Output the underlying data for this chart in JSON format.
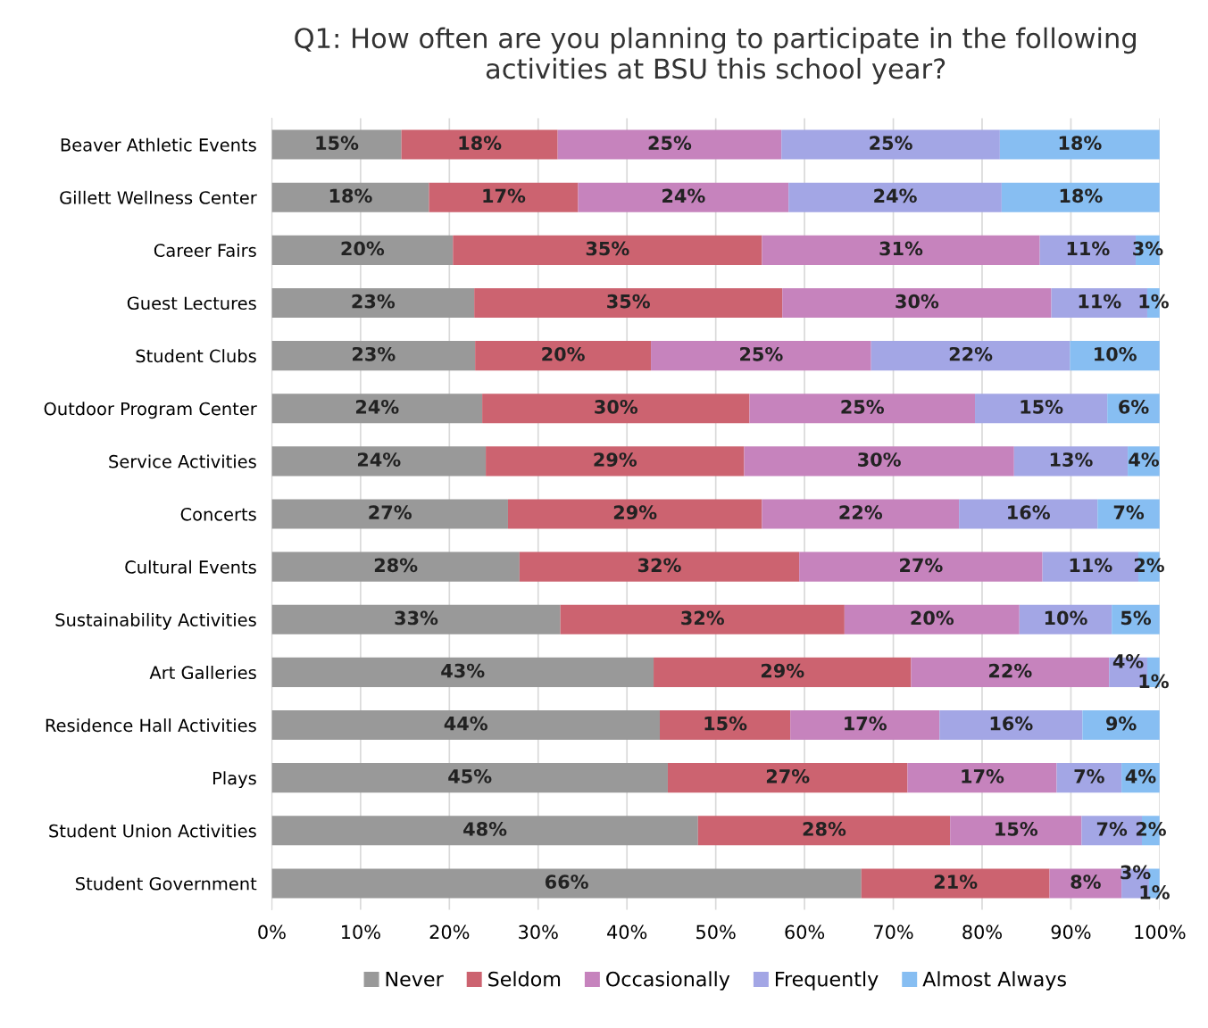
{
  "chart_data": {
    "type": "bar",
    "orientation": "horizontal",
    "stacked": true,
    "title": "Q1: How often are you planning to participate in the following\nactivities at BSU this school year?",
    "categories": [
      "Beaver Athletic Events",
      "Gillett Wellness Center",
      "Career Fairs",
      "Guest Lectures",
      "Student Clubs",
      "Outdoor Program Center",
      "Service Activities",
      "Concerts",
      "Cultural Events",
      "Sustainability Activities",
      "Art Galleries",
      "Residence Hall Activities",
      "Plays",
      "Student Union Activities",
      "Student Government"
    ],
    "series": [
      {
        "name": "Never",
        "color": "#999999",
        "values": [
          14.6,
          17.7,
          20.4,
          22.8,
          22.9,
          23.7,
          24.1,
          26.6,
          27.9,
          32.5,
          43.0,
          43.7,
          44.6,
          48.0,
          66.4
        ],
        "value_labels": [
          "15%",
          "18%",
          "20%",
          "23%",
          "23%",
          "24%",
          "24%",
          "27%",
          "28%",
          "33%",
          "43%",
          "44%",
          "45%",
          "48%",
          "66%"
        ]
      },
      {
        "name": "Seldom",
        "color": "#cc6370",
        "values": [
          17.6,
          16.8,
          34.8,
          34.7,
          19.8,
          30.1,
          29.1,
          28.6,
          31.5,
          32.0,
          29.0,
          14.7,
          27.0,
          28.4,
          21.2
        ],
        "value_labels": [
          "18%",
          "17%",
          "35%",
          "35%",
          "20%",
          "30%",
          "29%",
          "29%",
          "32%",
          "32%",
          "29%",
          "15%",
          "27%",
          "28%",
          "21%"
        ]
      },
      {
        "name": "Occasionally",
        "color": "#c683bd",
        "values": [
          25.2,
          23.7,
          31.3,
          30.3,
          24.8,
          25.4,
          30.4,
          22.2,
          27.4,
          19.7,
          22.3,
          16.8,
          16.8,
          14.8,
          8.1
        ],
        "value_labels": [
          "25%",
          "24%",
          "31%",
          "30%",
          "25%",
          "25%",
          "30%",
          "22%",
          "27%",
          "20%",
          "22%",
          "17%",
          "17%",
          "15%",
          "8%"
        ]
      },
      {
        "name": "Frequently",
        "color": "#a3a6e5",
        "values": [
          24.6,
          24.0,
          10.8,
          10.8,
          22.4,
          14.9,
          12.8,
          15.6,
          10.8,
          10.4,
          4.3,
          16.1,
          7.3,
          6.8,
          3.1
        ],
        "value_labels": [
          "25%",
          "24%",
          "11%",
          "11%",
          "22%",
          "15%",
          "13%",
          "16%",
          "11%",
          "10%",
          "4%",
          "16%",
          "7%",
          "7%",
          "3%"
        ]
      },
      {
        "name": "Almost Always",
        "color": "#87bef2",
        "values": [
          18.0,
          17.8,
          2.7,
          1.4,
          10.1,
          5.9,
          3.6,
          7.0,
          2.4,
          5.4,
          1.4,
          8.7,
          4.3,
          2.0,
          1.2
        ],
        "value_labels": [
          "18%",
          "18%",
          "3%",
          "1%",
          "10%",
          "6%",
          "4%",
          "7%",
          "2%",
          "5%",
          "1%",
          "9%",
          "4%",
          "2%",
          "1%"
        ]
      }
    ],
    "xlim": [
      0,
      100
    ],
    "xticks": [
      {
        "value": 0,
        "label": "0%"
      },
      {
        "value": 10,
        "label": "10%"
      },
      {
        "value": 20,
        "label": "20%"
      },
      {
        "value": 30,
        "label": "30%"
      },
      {
        "value": 40,
        "label": "40%"
      },
      {
        "value": 50,
        "label": "50%"
      },
      {
        "value": 60,
        "label": "60%"
      },
      {
        "value": 70,
        "label": "70%"
      },
      {
        "value": 80,
        "label": "80%"
      },
      {
        "value": 90,
        "label": "90%"
      },
      {
        "value": 100,
        "label": "100%"
      }
    ],
    "grid": "x",
    "legend": "bottom"
  }
}
